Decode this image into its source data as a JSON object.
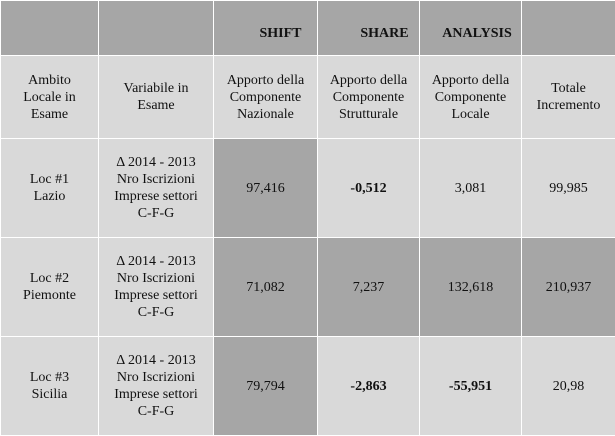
{
  "header_top": {
    "shift": "SHIFT",
    "share": "SHARE",
    "analysis": "ANALYSIS"
  },
  "columns": {
    "ambito": [
      "Ambito",
      "Locale in",
      "Esame"
    ],
    "variabile": [
      "Variabile in",
      "Esame"
    ],
    "nazionale": [
      "Apporto della",
      "Componente",
      "Nazionale"
    ],
    "strutturale": [
      "Apporto della",
      "Componente",
      "Strutturale"
    ],
    "locale": [
      "Apporto della",
      "Componente",
      "Locale"
    ],
    "totale": [
      "Totale",
      "Incremento"
    ]
  },
  "rows": [
    {
      "location": [
        "Loc #1",
        "Lazio"
      ],
      "variable": [
        "Δ 2014 - 2013",
        "Nro Iscrizioni",
        "Imprese settori",
        "C-F-G"
      ],
      "nazionale": "97,416",
      "strutturale": "-0,512",
      "locale": "3,081",
      "totale": "99,985"
    },
    {
      "location": [
        "Loc #2",
        "Piemonte"
      ],
      "variable": [
        "Δ 2014 - 2013",
        "Nro Iscrizioni",
        "Imprese settori",
        "C-F-G"
      ],
      "nazionale": "71,082",
      "strutturale": "7,237",
      "locale": "132,618",
      "totale": "210,937"
    },
    {
      "location": [
        "Loc #3",
        "Sicilia"
      ],
      "variable": [
        "Δ 2014 - 2013",
        "Nro Iscrizioni",
        "Imprese settori",
        "C-F-G"
      ],
      "nazionale": "79,794",
      "strutturale": "-2,863",
      "locale": "-55,951",
      "totale": "20,98"
    }
  ]
}
